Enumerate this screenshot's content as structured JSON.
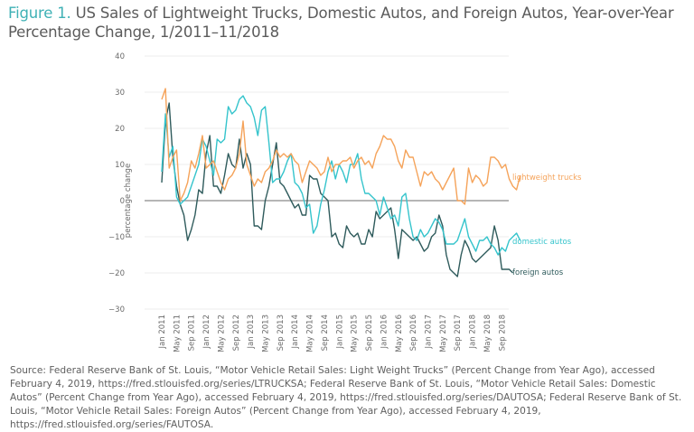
{
  "title": {
    "figure_label": "Figure 1.",
    "text": " US Sales of Lightweight Trucks, Domestic Autos, and Foreign Autos, Year-over-Year Percentage Change, 1/2011–11/2018"
  },
  "source": "Source: Federal Reserve Bank of St. Louis, “Motor Vehicle Retail Sales: Light Weight Trucks” (Percent Change from Year Ago), accessed February 4, 2019, https://fred.stlouisfed.org/series/LTRUCKSA; Federal Reserve Bank of St. Louis, “Motor Vehicle Retail Sales: Domestic Autos” (Percent Change from Year Ago), accessed February 4, 2019, https://fred.stlouisfed.org/series/DAUTOSA; Federal Reserve Bank of St. Louis, “Motor Vehicle Retail Sales: Foreign Autos” (Percent Change from Year Ago), accessed February 4, 2019, https://fred.stlouisfed.org/series/FAUTOSA.",
  "colors": {
    "lightweight_trucks": "#f5a35a",
    "domestic_autos": "#35c4cc",
    "foreign_autos": "#2f5b5c",
    "zero_line": "#8a8a8a",
    "grid": "#ececec",
    "figure_label": "#3fb1b5"
  },
  "chart_data": {
    "type": "line",
    "title": "US Sales of Lightweight Trucks, Domestic Autos, and Foreign Autos, Year-over-Year Percentage Change, 1/2011–11/2018",
    "xlabel": "",
    "ylabel": "percentage change",
    "ylim": [
      -30,
      40
    ],
    "yticks": [
      40,
      30,
      20,
      10,
      0,
      -10,
      -20,
      -30
    ],
    "grid": true,
    "legend": "inline-right",
    "x_start": "Jan 2011",
    "x_end": "Nov 2018",
    "x_unit": "month",
    "xtick_labels": [
      "Jan 2011",
      "May 2011",
      "Sep 2011",
      "Jan 2012",
      "May 2012",
      "Sep 2012",
      "Jan 2013",
      "May 2013",
      "Sep 2013",
      "Jan 2014",
      "May 2014",
      "Sep 2014",
      "Jan 2015",
      "May 2015",
      "Sep 2015",
      "Jan 2016",
      "May 2016",
      "Sep 2016",
      "Jan 2017",
      "May 2017",
      "Sep 2017",
      "Jan 2018",
      "May 2018",
      "Sep 2018"
    ],
    "series": [
      {
        "name": "lightweight trucks",
        "values": [
          28,
          31,
          9,
          12,
          14,
          0,
          2,
          5,
          11,
          9,
          13,
          18,
          9,
          10,
          11,
          8,
          5,
          3,
          6,
          7,
          9,
          13,
          22,
          10,
          7,
          4,
          6,
          5,
          8,
          9,
          11,
          14,
          12,
          13,
          12,
          13,
          11,
          10,
          5,
          8,
          11,
          10,
          9,
          7,
          8,
          12,
          8,
          10,
          10,
          11,
          11,
          12,
          9,
          11,
          12,
          10,
          11,
          9,
          13,
          15,
          18,
          17,
          17,
          15,
          11,
          9,
          14,
          12,
          12,
          8,
          4,
          8,
          7,
          8,
          6,
          5,
          3,
          5,
          7,
          9,
          0,
          0,
          -1,
          9,
          5,
          7,
          6,
          4,
          5,
          12,
          12,
          11,
          9,
          10,
          6,
          4,
          3,
          7
        ]
      },
      {
        "name": "domestic autos",
        "values": [
          8,
          24,
          12,
          15,
          1,
          -1,
          0,
          1,
          4,
          7,
          10,
          17,
          15,
          11,
          7,
          17,
          16,
          17,
          26,
          24,
          25,
          28,
          29,
          27,
          26,
          23,
          18,
          25,
          26,
          16,
          5,
          6,
          6,
          8,
          11,
          13,
          5,
          4,
          2,
          -2,
          -1,
          -9,
          -7,
          -1,
          3,
          8,
          11,
          6,
          10,
          8,
          5,
          10,
          10,
          13,
          6,
          2,
          2,
          1,
          0,
          -4,
          1,
          -2,
          -5,
          -4,
          -7,
          1,
          2,
          -5,
          -10,
          -11,
          -8,
          -10,
          -9,
          -7,
          -5,
          -6,
          -8,
          -12,
          -12,
          -12,
          -11,
          -8,
          -5,
          -10,
          -12,
          -14,
          -11,
          -11,
          -10,
          -12,
          -13,
          -15,
          -13,
          -14,
          -11,
          -10,
          -9,
          -11
        ]
      },
      {
        "name": "foreign autos",
        "values": [
          5,
          22,
          27,
          12,
          4,
          -1,
          -4,
          -11,
          -8,
          -4,
          3,
          2,
          13,
          18,
          4,
          4,
          2,
          7,
          13,
          10,
          9,
          17,
          9,
          13,
          10,
          -7,
          -7,
          -8,
          0,
          4,
          10,
          16,
          5,
          4,
          2,
          0,
          -2,
          -1,
          -4,
          -4,
          7,
          6,
          6,
          2,
          1,
          0,
          -10,
          -9,
          -12,
          -13,
          -7,
          -9,
          -10,
          -9,
          -12,
          -12,
          -8,
          -10,
          -3,
          -5,
          -4,
          -3,
          -2,
          -8,
          -16,
          -8,
          -9,
          -10,
          -11,
          -10,
          -12,
          -14,
          -13,
          -10,
          -9,
          -4,
          -7,
          -15,
          -19,
          -20,
          -21,
          -15,
          -11,
          -13,
          -16,
          -17,
          -16,
          -15,
          -14,
          -13,
          -7,
          -11,
          -19,
          -19,
          -19,
          -20
        ]
      }
    ]
  }
}
